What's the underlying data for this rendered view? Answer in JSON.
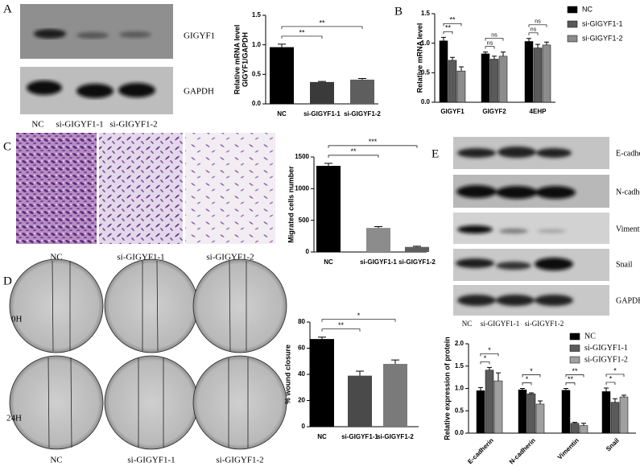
{
  "figure": {
    "panel_labels": [
      "A",
      "B",
      "C",
      "D",
      "E"
    ],
    "blot_a": {
      "bands": [
        "GIGYF1",
        "GAPDH"
      ],
      "lanes": [
        "NC",
        "si-GIGYF1-1",
        "si-GIGYF1-2"
      ]
    },
    "images_c": {
      "lanes": [
        "NC",
        "si-GIGYF1-1",
        "si-GIGYF1-2"
      ]
    },
    "images_d": {
      "rows": [
        "0H",
        "24H"
      ],
      "lanes": [
        "NC",
        "si-GIGYF1-1",
        "si-GIGYF1-2"
      ]
    },
    "blot_e": {
      "bands": [
        "E-cadherin",
        "N-cadherin",
        "Vimentin",
        "Snail",
        "GAPDH"
      ],
      "lanes": [
        "NC",
        "si-GIGYF1-1",
        "si-GIGYF1-2"
      ]
    }
  },
  "chart_data": [
    {
      "type": "bar",
      "ylabel": [
        "Relative mRNA level",
        "GIGYF1/GAPDH"
      ],
      "categories": [
        "NC",
        "si-GIGYF1-1",
        "si-GIGYF1-2"
      ],
      "values": [
        0.96,
        0.37,
        0.41
      ],
      "errors": [
        0.05,
        0.01,
        0.02
      ],
      "colors": [
        "#000000",
        "#3a3a3a",
        "#5e5e5e"
      ],
      "annotations": [
        "**",
        "**"
      ],
      "ylim": [
        0,
        1.5
      ],
      "yticks": [
        {
          "value": 0,
          "label": "0.0"
        },
        {
          "value": 0.5,
          "label": "0.5"
        },
        {
          "value": 1,
          "label": "1.0"
        },
        {
          "value": 1.5,
          "label": "1.5"
        }
      ]
    },
    {
      "type": "grouped-bar",
      "ylabel": [
        "Relative mRNA level"
      ],
      "categories": [
        "GIGYF1",
        "GIGYF2",
        "4EHP"
      ],
      "series": [
        {
          "name": "NC",
          "color": "#000000",
          "values": [
            1.04,
            0.82,
            1.03
          ],
          "errors": [
            0.06,
            0.03,
            0.05
          ]
        },
        {
          "name": "si-GIGYF1-1",
          "color": "#5a5a5a",
          "values": [
            0.71,
            0.73,
            0.92
          ],
          "errors": [
            0.05,
            0.05,
            0.06
          ]
        },
        {
          "name": "si-GIGYF1-2",
          "color": "#8c8c8c",
          "values": [
            0.53,
            0.78,
            0.97
          ],
          "errors": [
            0.07,
            0.07,
            0.05
          ]
        }
      ],
      "annotations": [
        [
          "**",
          "**"
        ],
        [
          "ns",
          "ns"
        ],
        [
          "ns",
          "ns"
        ]
      ],
      "legend": "right",
      "ylim": [
        0,
        1.5
      ],
      "yticks": [
        {
          "value": 0,
          "label": "0.0"
        },
        {
          "value": 0.5,
          "label": "0.5"
        },
        {
          "value": 1,
          "label": "1.0"
        },
        {
          "value": 1.5,
          "label": "1.5"
        }
      ]
    },
    {
      "type": "bar",
      "ylabel": [
        "Migrated cells number"
      ],
      "categories": [
        "NC",
        "si-GIGYF1-1",
        "si-GIGYF1-2"
      ],
      "values": [
        1360,
        380,
        80
      ],
      "errors": [
        40,
        20,
        10
      ],
      "colors": [
        "#000000",
        "#8c8c8c",
        "#5e5e5e"
      ],
      "annotations": [
        "**",
        "***"
      ],
      "ylim": [
        0,
        1500
      ],
      "yticks": [
        0,
        500,
        1000,
        1500
      ]
    },
    {
      "type": "bar",
      "ylabel": [
        "% wound closure"
      ],
      "categories": [
        "NC",
        "si-GIGYF1-1",
        "si-GIGYF1-2"
      ],
      "values": [
        67,
        39,
        48
      ],
      "errors": [
        1.5,
        3.5,
        3
      ],
      "colors": [
        "#000000",
        "#4a4a4a",
        "#7a7a7a"
      ],
      "annotations": [
        "**",
        "*"
      ],
      "ylim": [
        0,
        80
      ],
      "yticks": [
        0,
        20,
        40,
        60,
        80
      ]
    },
    {
      "type": "grouped-bar",
      "ylabel": [
        "Relative expression of protein"
      ],
      "categories": [
        "E-cadherin",
        "N-cadherin",
        "Vimentin",
        "Snail"
      ],
      "series": [
        {
          "name": "NC",
          "color": "#000000",
          "values": [
            0.95,
            0.97,
            0.96,
            0.93
          ],
          "errors": [
            0.07,
            0.03,
            0.04,
            0.08
          ]
        },
        {
          "name": "si-GIGYF1-1",
          "color": "#5a5a5a",
          "values": [
            1.41,
            0.88,
            0.22,
            0.69
          ],
          "errors": [
            0.06,
            0.02,
            0.02,
            0.08
          ]
        },
        {
          "name": "si-GIGYF1-2",
          "color": "#a0a0a0",
          "values": [
            1.17,
            0.65,
            0.17,
            0.81
          ],
          "errors": [
            0.18,
            0.07,
            0.05,
            0.04
          ]
        }
      ],
      "annotations": [
        [
          "*",
          "*"
        ],
        [
          "*",
          "*"
        ],
        [
          "**",
          "**"
        ],
        [
          "*",
          "*"
        ]
      ],
      "legend": "top-right",
      "rotate_labels": true,
      "ylim": [
        0,
        2
      ],
      "yticks": [
        {
          "value": 0,
          "label": "0.0"
        },
        {
          "value": 0.5,
          "label": "0.5"
        },
        {
          "value": 1,
          "label": "1.0"
        },
        {
          "value": 1.5,
          "label": "1.5"
        },
        {
          "value": 2,
          "label": "2.0"
        }
      ]
    }
  ]
}
